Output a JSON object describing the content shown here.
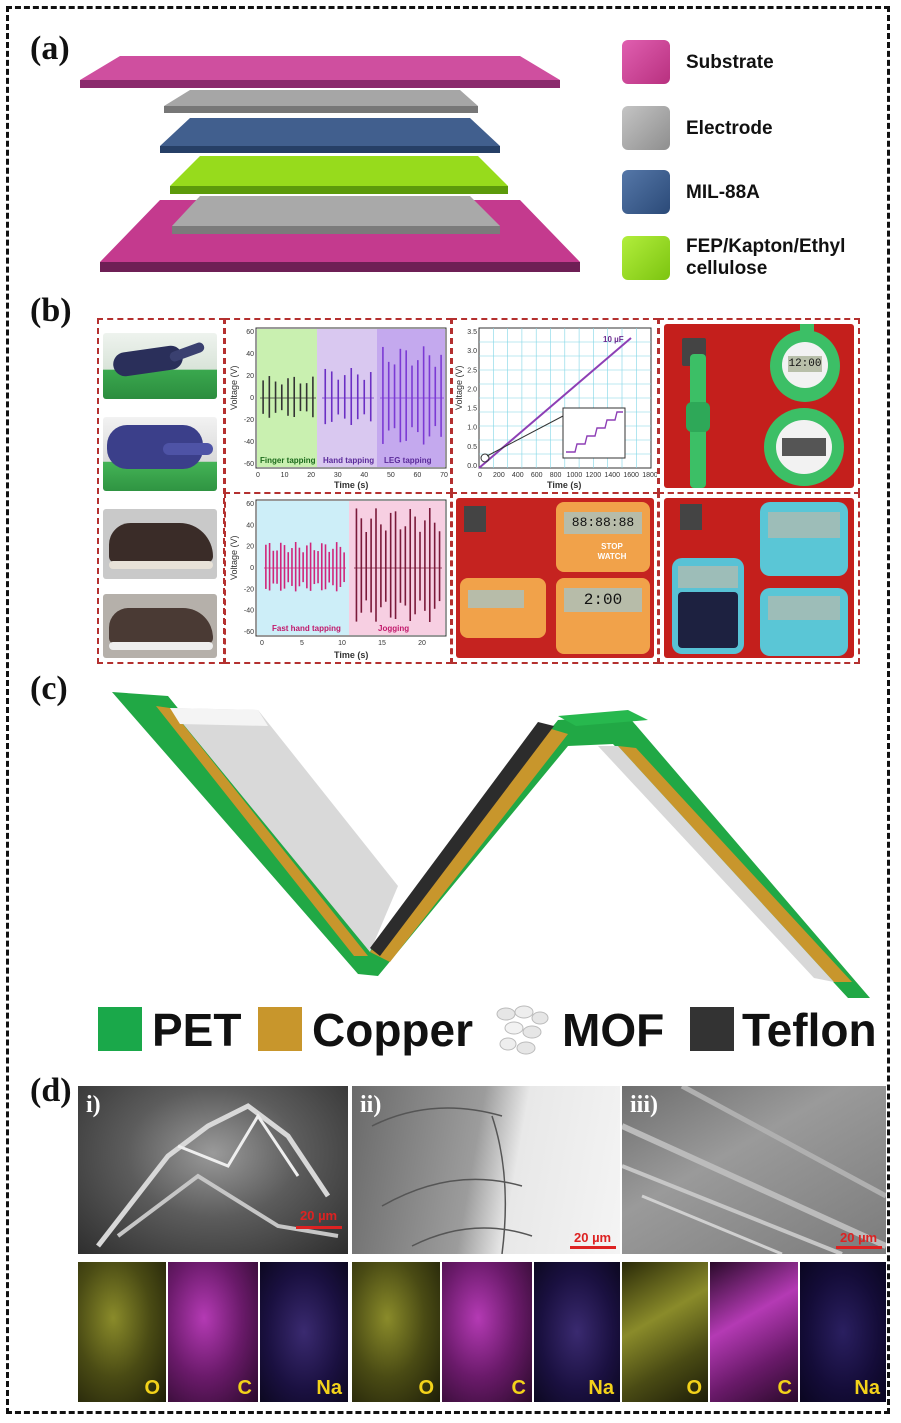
{
  "panels": {
    "a": "(a)",
    "b": "(b)",
    "c": "(c)",
    "d": "(d)"
  },
  "legend_a": [
    {
      "label": "Substrate",
      "color": "#d2479e"
    },
    {
      "label": "Electrode",
      "color": "#a8a8a8"
    },
    {
      "label": "MIL-88A",
      "color": "#3b5f8f"
    },
    {
      "label": "FEP/Kapton/Ethyl\ncellulose",
      "color": "#9ade1e"
    }
  ],
  "plot1": {
    "ylabel": "Voltage (V)",
    "xlabel": "Time (s)",
    "yticks": [
      "60",
      "40",
      "20",
      "0",
      "-20",
      "-40",
      "-60"
    ],
    "xticks": [
      "0",
      "10",
      "20",
      "30",
      "40",
      "50",
      "60",
      "70"
    ],
    "regions": [
      "Finger tapping",
      "Hand tapping",
      "LEG tapping"
    ]
  },
  "plot2": {
    "ylabel": "Voltage (V)",
    "xlabel": "Time (s)",
    "yticks": [
      "3.5",
      "3.0",
      "2.5",
      "2.0",
      "1.5",
      "1.0",
      "0.5",
      "0.0"
    ],
    "xticks": [
      "0",
      "200",
      "400",
      "600",
      "800",
      "1000",
      "1200",
      "1400",
      "1600",
      "1800"
    ],
    "annotation": "10 µF"
  },
  "plot3": {
    "ylabel": "Voltage (V)",
    "xlabel": "Time (s)",
    "yticks": [
      "60",
      "40",
      "20",
      "0",
      "-20",
      "-40",
      "-60"
    ],
    "xticks": [
      "0",
      "5",
      "10",
      "15",
      "20"
    ],
    "regions": [
      "Fast hand tapping",
      "Jogging"
    ]
  },
  "devices": {
    "watch_display": "12:00",
    "stopwatch_display": "88:88:88",
    "stopwatch_label": "STOP WATCH",
    "stopwatch_display2": "2:00"
  },
  "legend_c": [
    {
      "label": "PET",
      "color": "#1aa84a"
    },
    {
      "label": "Copper",
      "color": "#c8962c"
    },
    {
      "label": "MOF",
      "color": "#e8e8e8"
    },
    {
      "label": "Teflon",
      "color": "#333333"
    }
  ],
  "sem": [
    {
      "label": "i)",
      "scale": "20 µm"
    },
    {
      "label": "ii)",
      "scale": "20 µm"
    },
    {
      "label": "iii)",
      "scale": "20 µm"
    }
  ],
  "edx": [
    "O",
    "C",
    "Na",
    "O",
    "C",
    "Na",
    "O",
    "C",
    "Na"
  ]
}
